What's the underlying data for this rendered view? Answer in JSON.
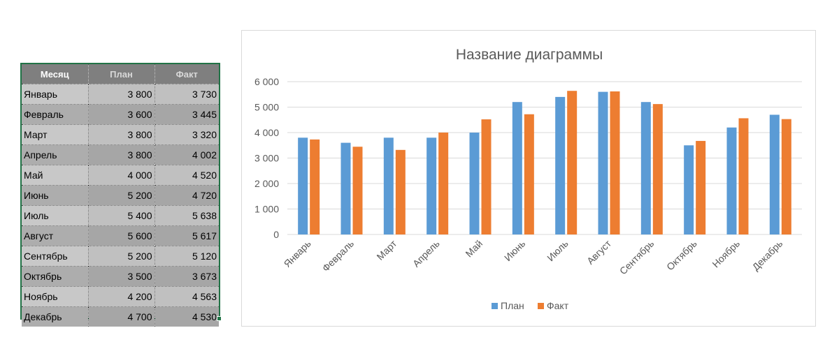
{
  "table": {
    "headers": [
      "Месяц",
      "План",
      "Факт"
    ],
    "rows": [
      {
        "month": "Январь",
        "plan": "3 800",
        "fact": "3 730"
      },
      {
        "month": "Февраль",
        "plan": "3 600",
        "fact": "3 445"
      },
      {
        "month": "Март",
        "plan": "3 800",
        "fact": "3 320"
      },
      {
        "month": "Апрель",
        "plan": "3 800",
        "fact": "4 002"
      },
      {
        "month": "Май",
        "plan": "4 000",
        "fact": "4 520"
      },
      {
        "month": "Июнь",
        "plan": "5 200",
        "fact": "4 720"
      },
      {
        "month": "Июль",
        "plan": "5 400",
        "fact": "5 638"
      },
      {
        "month": "Август",
        "plan": "5 600",
        "fact": "5 617"
      },
      {
        "month": "Сентябрь",
        "plan": "5 200",
        "fact": "5 120"
      },
      {
        "month": "Октябрь",
        "plan": "3 500",
        "fact": "3 673"
      },
      {
        "month": "Ноябрь",
        "plan": "4 200",
        "fact": "4 563"
      },
      {
        "month": "Декабрь",
        "plan": "4 700",
        "fact": "4 530"
      }
    ]
  },
  "chart_data": {
    "type": "bar",
    "title": "Название диаграммы",
    "categories": [
      "Январь",
      "Февраль",
      "Март",
      "Апрель",
      "Май",
      "Июнь",
      "Июль",
      "Август",
      "Сентябрь",
      "Октябрь",
      "Ноябрь",
      "Декабрь"
    ],
    "series": [
      {
        "name": "План",
        "color": "#5b9bd5",
        "values": [
          3800,
          3600,
          3800,
          3800,
          4000,
          5200,
          5400,
          5600,
          5200,
          3500,
          4200,
          4700
        ]
      },
      {
        "name": "Факт",
        "color": "#ed7d31",
        "values": [
          3730,
          3445,
          3320,
          4002,
          4520,
          4720,
          5638,
          5617,
          5120,
          3673,
          4563,
          4530
        ]
      }
    ],
    "ylim": [
      0,
      6000
    ],
    "yticks": [
      0,
      1000,
      2000,
      3000,
      4000,
      5000,
      6000
    ],
    "ytick_labels": [
      "0",
      "1 000",
      "2 000",
      "3 000",
      "4 000",
      "5 000",
      "6 000"
    ],
    "grid": true,
    "legend": "bottom"
  }
}
